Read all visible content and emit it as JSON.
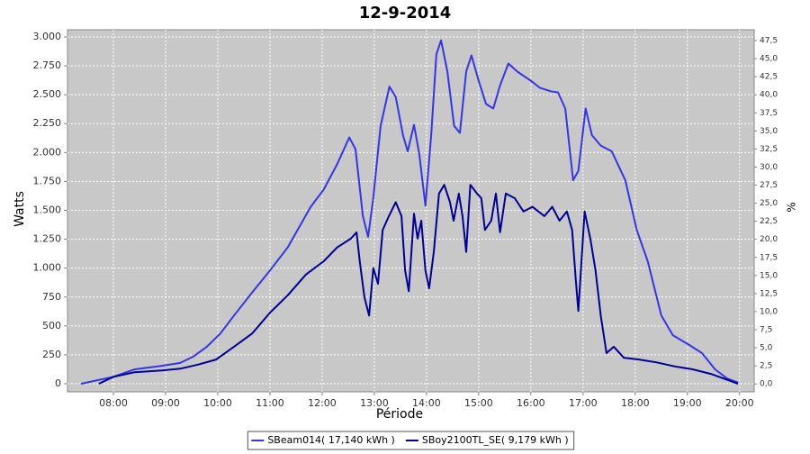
{
  "chart_data": {
    "type": "line",
    "title": "12-9-2014",
    "xlabel": "Période",
    "ylabel": "Watts",
    "y2label": "%",
    "xlim": [
      7.12,
      20.28
    ],
    "xticks": [
      {
        "value": 8,
        "label": "08:00"
      },
      {
        "value": 9,
        "label": "09:00"
      },
      {
        "value": 10,
        "label": "10:00"
      },
      {
        "value": 11,
        "label": "11:00"
      },
      {
        "value": 12,
        "label": "12:00"
      },
      {
        "value": 13,
        "label": "13:00"
      },
      {
        "value": 14,
        "label": "14:00"
      },
      {
        "value": 15,
        "label": "15:00"
      },
      {
        "value": 16,
        "label": "16:00"
      },
      {
        "value": 17,
        "label": "17:00"
      },
      {
        "value": 18,
        "label": "18:00"
      },
      {
        "value": 19,
        "label": "19:00"
      },
      {
        "value": 20,
        "label": "20:00"
      }
    ],
    "ylim": [
      -70,
      3062
    ],
    "yticks": [
      0,
      250,
      500,
      750,
      {
        "value": 1000,
        "label": "1.000"
      },
      {
        "value": 1250,
        "label": "1.250"
      },
      {
        "value": 1500,
        "label": "1.500"
      },
      {
        "value": 1750,
        "label": "1.750"
      },
      {
        "value": 2000,
        "label": "2.000"
      },
      {
        "value": 2250,
        "label": "2.250"
      },
      {
        "value": 2500,
        "label": "2.500"
      },
      {
        "value": 2750,
        "label": "2.750"
      },
      {
        "value": 3000,
        "label": "3.000"
      }
    ],
    "y2lim": [
      -1.1,
      49.0
    ],
    "y2ticks": [
      {
        "value": 0,
        "label": "0,0"
      },
      {
        "value": 2.5,
        "label": "2,5"
      },
      {
        "value": 5,
        "label": "5,0"
      },
      {
        "value": 7.5,
        "label": "7,5"
      },
      {
        "value": 10,
        "label": "10,0"
      },
      {
        "value": 12.5,
        "label": "12,5"
      },
      {
        "value": 15,
        "label": "15,0"
      },
      {
        "value": 17.5,
        "label": "17,5"
      },
      {
        "value": 20,
        "label": "20,0"
      },
      {
        "value": 22.5,
        "label": "22,5"
      },
      {
        "value": 25,
        "label": "25,0"
      },
      {
        "value": 27.5,
        "label": "27,5"
      },
      {
        "value": 30,
        "label": "30,0"
      },
      {
        "value": 32.5,
        "label": "32,5"
      },
      {
        "value": 35,
        "label": "35,0"
      },
      {
        "value": 37.5,
        "label": "37,5"
      },
      {
        "value": 40,
        "label": "40,0"
      },
      {
        "value": 42.5,
        "label": "42,5"
      },
      {
        "value": 45,
        "label": "45,0"
      },
      {
        "value": 47.5,
        "label": "47,5"
      }
    ],
    "grid": true,
    "legend": "bottom",
    "plot_background": "#c8c8c8",
    "series": [
      {
        "name": "SBeam014( 17,140 kWh )",
        "color": "#3535e8",
        "x": [
          7.38,
          8.0,
          8.41,
          8.93,
          9.28,
          9.53,
          9.79,
          10.05,
          10.31,
          10.66,
          11.0,
          11.34,
          11.78,
          12.03,
          12.29,
          12.52,
          12.64,
          12.78,
          12.88,
          12.98,
          13.12,
          13.29,
          13.41,
          13.55,
          13.64,
          13.76,
          13.86,
          13.98,
          14.09,
          14.19,
          14.28,
          14.4,
          14.53,
          14.64,
          14.76,
          14.86,
          15.0,
          15.14,
          15.28,
          15.41,
          15.57,
          15.74,
          16.0,
          16.17,
          16.38,
          16.52,
          16.66,
          16.81,
          16.91,
          17.05,
          17.17,
          17.34,
          17.55,
          17.81,
          18.03,
          18.24,
          18.5,
          18.72,
          19.02,
          19.28,
          19.53,
          19.76,
          19.97
        ],
        "values": [
          0,
          60,
          125,
          155,
          180,
          235,
          320,
          435,
          590,
          790,
          980,
          1180,
          1530,
          1680,
          1900,
          2130,
          2030,
          1450,
          1270,
          1610,
          2230,
          2570,
          2480,
          2150,
          2010,
          2240,
          1990,
          1540,
          2150,
          2850,
          2970,
          2700,
          2230,
          2170,
          2700,
          2840,
          2620,
          2420,
          2380,
          2580,
          2770,
          2700,
          2620,
          2560,
          2530,
          2520,
          2380,
          1760,
          1840,
          2380,
          2150,
          2060,
          2010,
          1760,
          1330,
          1060,
          590,
          420,
          340,
          265,
          125,
          45,
          10
        ]
      },
      {
        "name": "SBoy2100TL_SE( 9,179 kWh )",
        "color": "#000096",
        "x": [
          7.72,
          8.0,
          8.41,
          8.93,
          9.28,
          9.62,
          9.97,
          10.31,
          10.66,
          11.0,
          11.34,
          11.69,
          12.03,
          12.29,
          12.55,
          12.66,
          12.72,
          12.81,
          12.9,
          12.98,
          13.07,
          13.16,
          13.28,
          13.41,
          13.52,
          13.59,
          13.66,
          13.76,
          13.83,
          13.9,
          13.98,
          14.05,
          14.14,
          14.24,
          14.34,
          14.45,
          14.52,
          14.62,
          14.69,
          14.76,
          14.84,
          14.97,
          15.05,
          15.12,
          15.24,
          15.33,
          15.41,
          15.52,
          15.69,
          15.86,
          16.03,
          16.26,
          16.41,
          16.55,
          16.69,
          16.79,
          16.86,
          16.91,
          17.03,
          17.14,
          17.24,
          17.34,
          17.45,
          17.59,
          17.78,
          18.07,
          18.41,
          18.76,
          19.1,
          19.45,
          19.79,
          19.97
        ],
        "values": [
          0,
          60,
          100,
          115,
          130,
          165,
          210,
          320,
          435,
          615,
          765,
          945,
          1060,
          1180,
          1255,
          1310,
          1060,
          750,
          590,
          1000,
          865,
          1330,
          1450,
          1570,
          1450,
          980,
          800,
          1470,
          1255,
          1410,
          980,
          825,
          1140,
          1645,
          1720,
          1570,
          1410,
          1645,
          1450,
          1140,
          1720,
          1645,
          1605,
          1330,
          1410,
          1645,
          1310,
          1645,
          1605,
          1490,
          1530,
          1450,
          1530,
          1410,
          1490,
          1330,
          905,
          630,
          1490,
          1255,
          980,
          590,
          265,
          320,
          225,
          210,
          185,
          150,
          125,
          85,
          30,
          0
        ]
      }
    ]
  }
}
